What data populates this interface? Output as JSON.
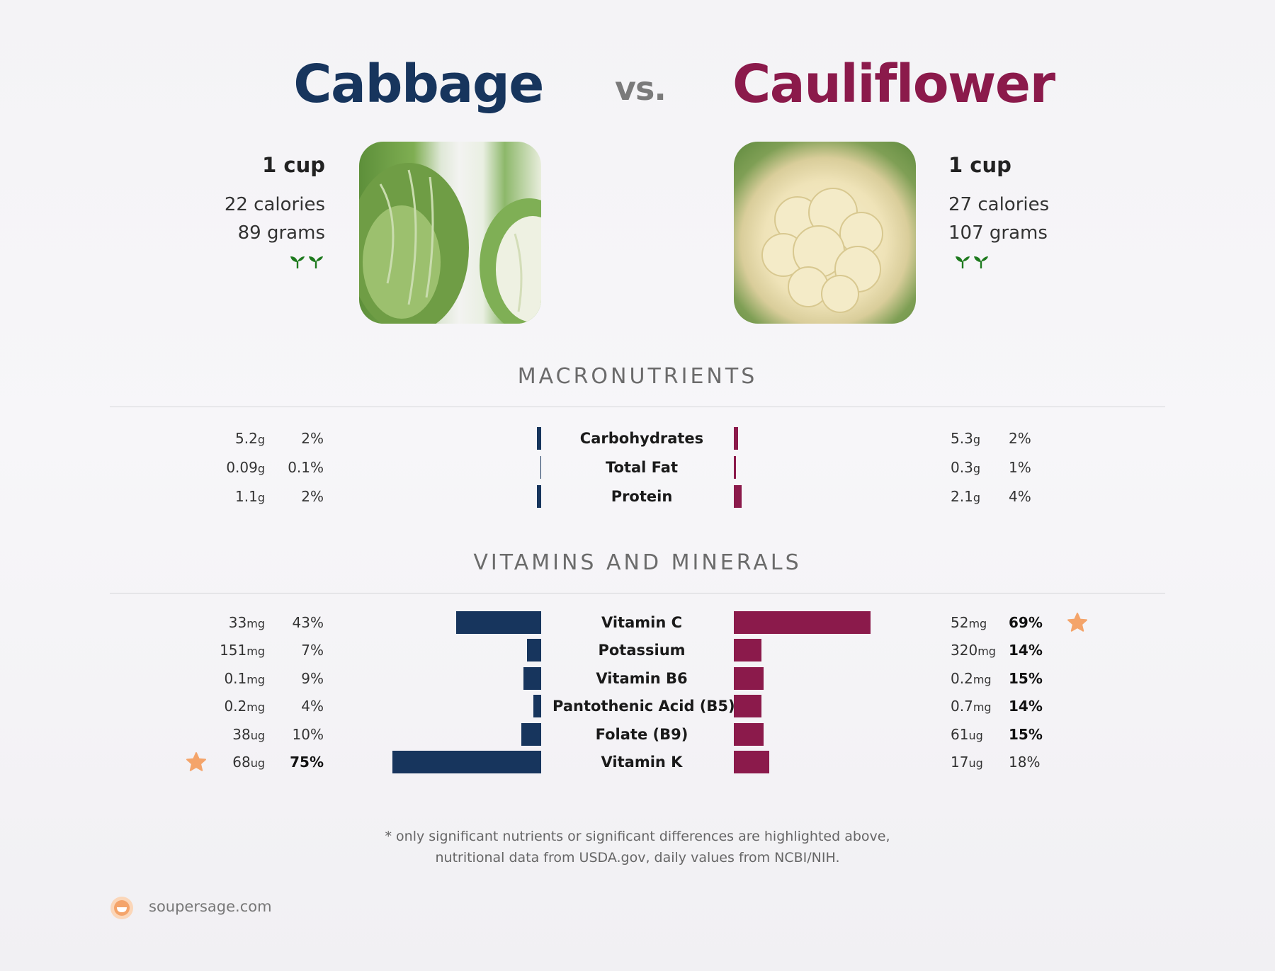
{
  "header": {
    "left_title": "Cabbage",
    "vs": "vs.",
    "right_title": "Cauliflower"
  },
  "left_food": {
    "serving": "1 cup",
    "calories": "22 calories",
    "grams": "89 grams",
    "color": "#17355d",
    "icon": "sprout-icon"
  },
  "right_food": {
    "serving": "1 cup",
    "calories": "27 calories",
    "grams": "107 grams",
    "color": "#8b1a4b",
    "icon": "sprout-icon"
  },
  "sections": {
    "macro": "MACRONUTRIENTS",
    "vitamins": "VITAMINS AND MINERALS"
  },
  "chart_data": [
    {
      "type": "bar",
      "title": "MACRONUTRIENTS",
      "categories": [
        "Carbohydrates",
        "Total Fat",
        "Protein"
      ],
      "series": [
        {
          "name": "Cabbage",
          "amounts": [
            "5.2",
            "0.09",
            "1.1"
          ],
          "units": [
            "g",
            "g",
            "g"
          ],
          "percent_labels": [
            "2%",
            "0.1%",
            "2%"
          ],
          "values": [
            2,
            0.1,
            2
          ],
          "bold": [
            false,
            false,
            false
          ]
        },
        {
          "name": "Cauliflower",
          "amounts": [
            "5.3",
            "0.3",
            "2.1"
          ],
          "units": [
            "g",
            "g",
            "g"
          ],
          "percent_labels": [
            "2%",
            "1%",
            "4%"
          ],
          "values": [
            2,
            1,
            4
          ],
          "bold": [
            false,
            false,
            false
          ]
        }
      ]
    },
    {
      "type": "bar",
      "title": "VITAMINS AND MINERALS",
      "categories": [
        "Vitamin C",
        "Potassium",
        "Vitamin B6",
        "Pantothenic Acid (B5)",
        "Folate (B9)",
        "Vitamin K"
      ],
      "series": [
        {
          "name": "Cabbage",
          "amounts": [
            "33",
            "151",
            "0.1",
            "0.2",
            "38",
            "68"
          ],
          "units": [
            "mg",
            "mg",
            "mg",
            "mg",
            "ug",
            "ug"
          ],
          "percent_labels": [
            "43%",
            "7%",
            "9%",
            "4%",
            "10%",
            "75%"
          ],
          "values": [
            43,
            7,
            9,
            4,
            10,
            75
          ],
          "bold": [
            false,
            false,
            false,
            false,
            false,
            true
          ],
          "star_on": "Vitamin K"
        },
        {
          "name": "Cauliflower",
          "amounts": [
            "52",
            "320",
            "0.2",
            "0.7",
            "61",
            "17"
          ],
          "units": [
            "mg",
            "mg",
            "mg",
            "mg",
            "ug",
            "ug"
          ],
          "percent_labels": [
            "69%",
            "14%",
            "15%",
            "14%",
            "15%",
            "18%"
          ],
          "values": [
            69,
            14,
            15,
            14,
            15,
            18
          ],
          "bold": [
            true,
            true,
            true,
            true,
            true,
            false
          ],
          "star_on": "Vitamin C"
        }
      ]
    }
  ],
  "footer": {
    "note_line1": "* only significant nutrients or significant differences are highlighted above,",
    "note_line2": "nutritional data from USDA.gov, daily values from NCBI/NIH.",
    "brand": "soupersage.com"
  },
  "colors": {
    "left": "#17355d",
    "right": "#8b1a4b",
    "star": "#f4a46a"
  }
}
